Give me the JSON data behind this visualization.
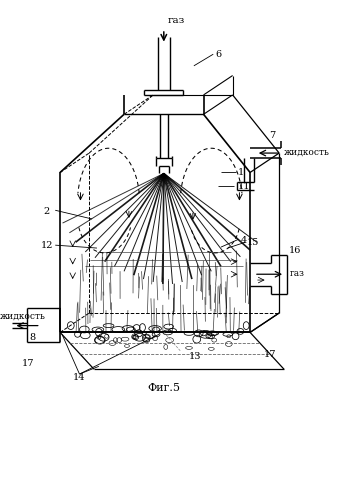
{
  "bg_color": "#ffffff",
  "fig_label": "Фиг.5",
  "labels": {
    "gas_top": "газ",
    "liquid_right": "жидкость",
    "liquid_left": "жидкость",
    "gas_right": "газ"
  }
}
